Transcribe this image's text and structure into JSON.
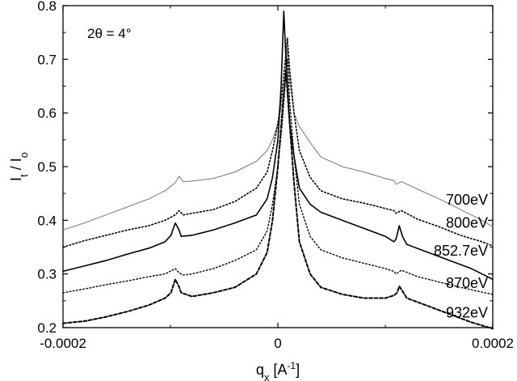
{
  "chart_data": {
    "type": "line",
    "title": "",
    "xlabel": "q",
    "xlabel_sub": "x",
    "xlabel_unit": " [A",
    "xlabel_sup": "-1",
    "xlabel_close": "]",
    "ylabel_main": "I",
    "ylabel_sub1": "t",
    "ylabel_mid": " / I",
    "ylabel_sub2": "o",
    "annotation": "2θ = 4°",
    "xlim": [
      -0.0002,
      0.0002
    ],
    "ylim": [
      0.2,
      0.8
    ],
    "xticks": [
      -0.0002,
      0,
      0.0002
    ],
    "xtick_labels": [
      "-0.0002",
      "0",
      "0.0002"
    ],
    "yticks": [
      0.2,
      0.3,
      0.4,
      0.5,
      0.6,
      0.7,
      0.8
    ],
    "ytick_labels": [
      "0.2",
      "0.3",
      "0.4",
      "0.5",
      "0.6",
      "0.7",
      "0.8"
    ],
    "grid": false,
    "legend": "none",
    "series": [
      {
        "name": "700eV",
        "color": "#777777",
        "dash": "solid",
        "points": [
          [
            -0.0002,
            0.382
          ],
          [
            -0.00018,
            0.395
          ],
          [
            -0.00016,
            0.41
          ],
          [
            -0.00014,
            0.425
          ],
          [
            -0.00012,
            0.44
          ],
          [
            -0.000105,
            0.455
          ],
          [
            -9.55e-05,
            0.47
          ],
          [
            -9.2e-05,
            0.482
          ],
          [
            -8.8e-05,
            0.472
          ],
          [
            -8e-05,
            0.473
          ],
          [
            -6e-05,
            0.478
          ],
          [
            -4e-05,
            0.49
          ],
          [
            -2e-05,
            0.51
          ],
          [
            -1e-05,
            0.53
          ],
          [
            -5e-06,
            0.55
          ],
          [
            0,
            0.58
          ],
          [
            4e-06,
            0.62
          ],
          [
            7e-06,
            0.67
          ],
          [
            8.8e-06,
            0.72
          ],
          [
            1.1e-05,
            0.66
          ],
          [
            1.5e-05,
            0.6
          ],
          [
            2e-05,
            0.575
          ],
          [
            3e-05,
            0.545
          ],
          [
            4e-05,
            0.518
          ],
          [
            6e-05,
            0.5
          ],
          [
            8e-05,
            0.49
          ],
          [
            0.0001,
            0.478
          ],
          [
            0.000108,
            0.474
          ],
          [
            0.00011,
            0.467
          ],
          [
            0.000115,
            0.472
          ],
          [
            0.00013,
            0.458
          ],
          [
            0.00015,
            0.44
          ],
          [
            0.00017,
            0.42
          ],
          [
            0.00019,
            0.4
          ],
          [
            0.0002,
            0.388
          ]
        ]
      },
      {
        "name": "800eV",
        "color": "#000000",
        "dash": "dotted",
        "points": [
          [
            -0.0002,
            0.35
          ],
          [
            -0.00018,
            0.362
          ],
          [
            -0.00016,
            0.372
          ],
          [
            -0.00014,
            0.382
          ],
          [
            -0.00012,
            0.39
          ],
          [
            -0.000105,
            0.4
          ],
          [
            -9.55e-05,
            0.41
          ],
          [
            -9.2e-05,
            0.418
          ],
          [
            -8.8e-05,
            0.41
          ],
          [
            -8e-05,
            0.413
          ],
          [
            -6e-05,
            0.42
          ],
          [
            -4e-05,
            0.435
          ],
          [
            -2e-05,
            0.46
          ],
          [
            -1e-05,
            0.49
          ],
          [
            -5e-06,
            0.53
          ],
          [
            0,
            0.58
          ],
          [
            4e-06,
            0.64
          ],
          [
            7e-06,
            0.7
          ],
          [
            8.8e-06,
            0.74
          ],
          [
            1.1e-05,
            0.68
          ],
          [
            1.5e-05,
            0.6
          ],
          [
            2e-05,
            0.53
          ],
          [
            3e-05,
            0.48
          ],
          [
            4e-05,
            0.455
          ],
          [
            6e-05,
            0.44
          ],
          [
            8e-05,
            0.432
          ],
          [
            0.0001,
            0.422
          ],
          [
            0.000108,
            0.418
          ],
          [
            0.00011,
            0.413
          ],
          [
            0.000115,
            0.418
          ],
          [
            0.00013,
            0.402
          ],
          [
            0.00015,
            0.388
          ],
          [
            0.00017,
            0.372
          ],
          [
            0.00019,
            0.36
          ],
          [
            0.0002,
            0.352
          ]
        ]
      },
      {
        "name": "852.7eV",
        "color": "#000000",
        "dash": "solid",
        "points": [
          [
            -0.0002,
            0.305
          ],
          [
            -0.00018,
            0.315
          ],
          [
            -0.00016,
            0.325
          ],
          [
            -0.00014,
            0.337
          ],
          [
            -0.00012,
            0.348
          ],
          [
            -0.000105,
            0.36
          ],
          [
            -9.95e-05,
            0.372
          ],
          [
            -9.55e-05,
            0.395
          ],
          [
            -9.2e-05,
            0.382
          ],
          [
            -9e-05,
            0.37
          ],
          [
            -8e-05,
            0.372
          ],
          [
            -6e-05,
            0.382
          ],
          [
            -4e-05,
            0.395
          ],
          [
            -2e-05,
            0.41
          ],
          [
            -1e-05,
            0.44
          ],
          [
            -5e-06,
            0.48
          ],
          [
            0,
            0.55
          ],
          [
            3e-06,
            0.65
          ],
          [
            5.5e-06,
            0.79
          ],
          [
            8e-06,
            0.68
          ],
          [
            1.1e-05,
            0.58
          ],
          [
            1.5e-05,
            0.52
          ],
          [
            2e-05,
            0.46
          ],
          [
            3e-05,
            0.43
          ],
          [
            4e-05,
            0.415
          ],
          [
            6e-05,
            0.4
          ],
          [
            8e-05,
            0.385
          ],
          [
            0.0001,
            0.37
          ],
          [
            0.000108,
            0.36
          ],
          [
            0.00011,
            0.365
          ],
          [
            0.000113,
            0.39
          ],
          [
            0.000116,
            0.37
          ],
          [
            0.00012,
            0.355
          ],
          [
            0.00014,
            0.34
          ],
          [
            0.00016,
            0.325
          ],
          [
            0.00018,
            0.31
          ],
          [
            0.0002,
            0.29
          ]
        ]
      },
      {
        "name": "870eV",
        "color": "#000000",
        "dash": "dotted",
        "points": [
          [
            -0.0002,
            0.265
          ],
          [
            -0.00018,
            0.272
          ],
          [
            -0.00016,
            0.28
          ],
          [
            -0.00014,
            0.287
          ],
          [
            -0.00012,
            0.295
          ],
          [
            -0.000105,
            0.3
          ],
          [
            -9.55e-05,
            0.31
          ],
          [
            -9.2e-05,
            0.302
          ],
          [
            -8.8e-05,
            0.298
          ],
          [
            -8e-05,
            0.3
          ],
          [
            -6e-05,
            0.31
          ],
          [
            -4e-05,
            0.325
          ],
          [
            -2e-05,
            0.345
          ],
          [
            -1e-05,
            0.38
          ],
          [
            -5e-06,
            0.43
          ],
          [
            0,
            0.5
          ],
          [
            4e-06,
            0.58
          ],
          [
            7e-06,
            0.66
          ],
          [
            8.8e-06,
            0.7
          ],
          [
            1.1e-05,
            0.62
          ],
          [
            1.5e-05,
            0.52
          ],
          [
            2e-05,
            0.43
          ],
          [
            3e-05,
            0.37
          ],
          [
            4e-05,
            0.345
          ],
          [
            6e-05,
            0.33
          ],
          [
            8e-05,
            0.32
          ],
          [
            0.0001,
            0.31
          ],
          [
            0.000108,
            0.305
          ],
          [
            0.00011,
            0.3
          ],
          [
            0.000115,
            0.307
          ],
          [
            0.00013,
            0.295
          ],
          [
            0.00015,
            0.285
          ],
          [
            0.00017,
            0.275
          ],
          [
            0.00019,
            0.266
          ],
          [
            0.0002,
            0.262
          ]
        ]
      },
      {
        "name": "932eV",
        "color": "#000000",
        "dash": "dashed",
        "points": [
          [
            -0.0002,
            0.208
          ],
          [
            -0.00018,
            0.212
          ],
          [
            -0.00016,
            0.22
          ],
          [
            -0.00014,
            0.23
          ],
          [
            -0.00012,
            0.242
          ],
          [
            -0.000105,
            0.255
          ],
          [
            -9.95e-05,
            0.265
          ],
          [
            -9.55e-05,
            0.29
          ],
          [
            -9.2e-05,
            0.276
          ],
          [
            -9e-05,
            0.265
          ],
          [
            -8e-05,
            0.258
          ],
          [
            -6e-05,
            0.265
          ],
          [
            -4e-05,
            0.275
          ],
          [
            -2e-05,
            0.3
          ],
          [
            -1e-05,
            0.34
          ],
          [
            -5e-06,
            0.4
          ],
          [
            0,
            0.5
          ],
          [
            4e-06,
            0.6
          ],
          [
            7.5e-06,
            0.68
          ],
          [
            1.1e-05,
            0.58
          ],
          [
            1.5e-05,
            0.47
          ],
          [
            2e-05,
            0.36
          ],
          [
            3e-05,
            0.3
          ],
          [
            4e-05,
            0.275
          ],
          [
            6e-05,
            0.262
          ],
          [
            8e-05,
            0.255
          ],
          [
            0.0001,
            0.255
          ],
          [
            0.000108,
            0.26
          ],
          [
            0.000111,
            0.265
          ],
          [
            0.000113,
            0.277
          ],
          [
            0.000116,
            0.268
          ],
          [
            0.00012,
            0.255
          ],
          [
            0.00014,
            0.24
          ],
          [
            0.00016,
            0.225
          ],
          [
            0.00018,
            0.21
          ],
          [
            0.0002,
            0.198
          ]
        ]
      }
    ],
    "series_label_positions": [
      {
        "name": "700eV",
        "y": 0.438
      },
      {
        "name": "800eV",
        "y": 0.395
      },
      {
        "name": "852.7eV",
        "y": 0.343
      },
      {
        "name": "870eV",
        "y": 0.283
      },
      {
        "name": "932eV",
        "y": 0.228
      }
    ]
  }
}
